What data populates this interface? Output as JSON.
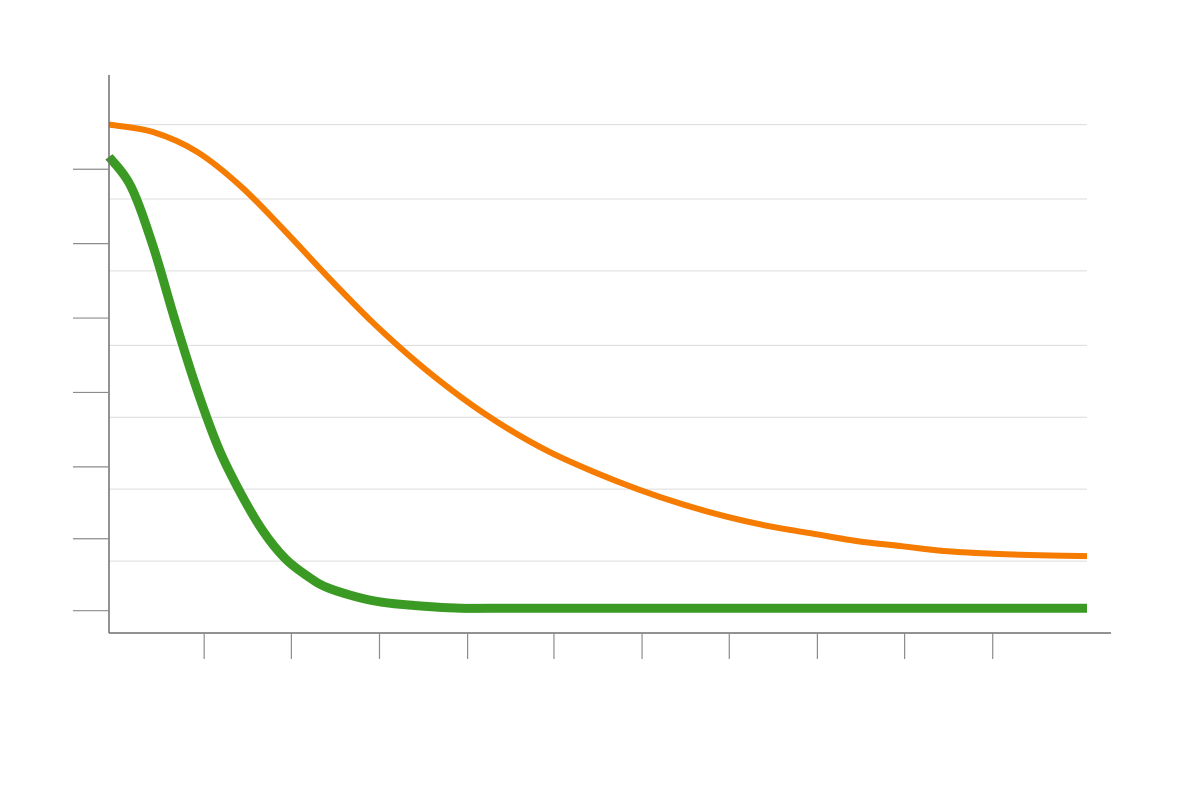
{
  "chart_data": {
    "type": "line",
    "title": "",
    "xlabel": "",
    "ylabel": "",
    "xlim": [
      0,
      11.1
    ],
    "ylim": [
      0,
      11.25
    ],
    "grid": "horizontal",
    "legend": "none",
    "x_ticks": [
      1.08,
      2.07,
      3.07,
      4.07,
      5.05,
      6.05,
      7.04,
      8.04,
      9.03,
      10.03
    ],
    "y_ticks": [
      0.45,
      1.9,
      3.35,
      4.85,
      6.35,
      7.85,
      9.35
    ],
    "gridlines_y": [
      1.45,
      2.9,
      4.35,
      5.8,
      7.3,
      8.75,
      10.25
    ],
    "series": [
      {
        "color": "#f57c00",
        "stroke": 6,
        "x": [
          0,
          0.5,
          1,
          1.5,
          2,
          2.5,
          3,
          3.5,
          4,
          4.5,
          5,
          5.5,
          6,
          6.5,
          7,
          7.5,
          8,
          8.5,
          9,
          9.5,
          10,
          10.5,
          11.1
        ],
        "y": [
          10.25,
          10.1,
          9.7,
          9.0,
          8.1,
          7.15,
          6.25,
          5.45,
          4.75,
          4.15,
          3.65,
          3.25,
          2.9,
          2.6,
          2.35,
          2.15,
          2.0,
          1.85,
          1.75,
          1.65,
          1.6,
          1.57,
          1.55
        ]
      },
      {
        "color": "#3a9a24",
        "stroke": 9,
        "x": [
          0,
          0.25,
          0.5,
          0.75,
          1,
          1.25,
          1.5,
          1.75,
          2,
          2.25,
          2.5,
          3,
          3.5,
          4,
          4.5,
          5,
          6,
          7,
          8,
          9,
          10,
          11.1
        ],
        "y": [
          9.6,
          9.0,
          7.8,
          6.3,
          4.9,
          3.7,
          2.8,
          2.05,
          1.5,
          1.15,
          0.9,
          0.65,
          0.55,
          0.5,
          0.5,
          0.5,
          0.5,
          0.5,
          0.5,
          0.5,
          0.5,
          0.5
        ]
      }
    ]
  }
}
